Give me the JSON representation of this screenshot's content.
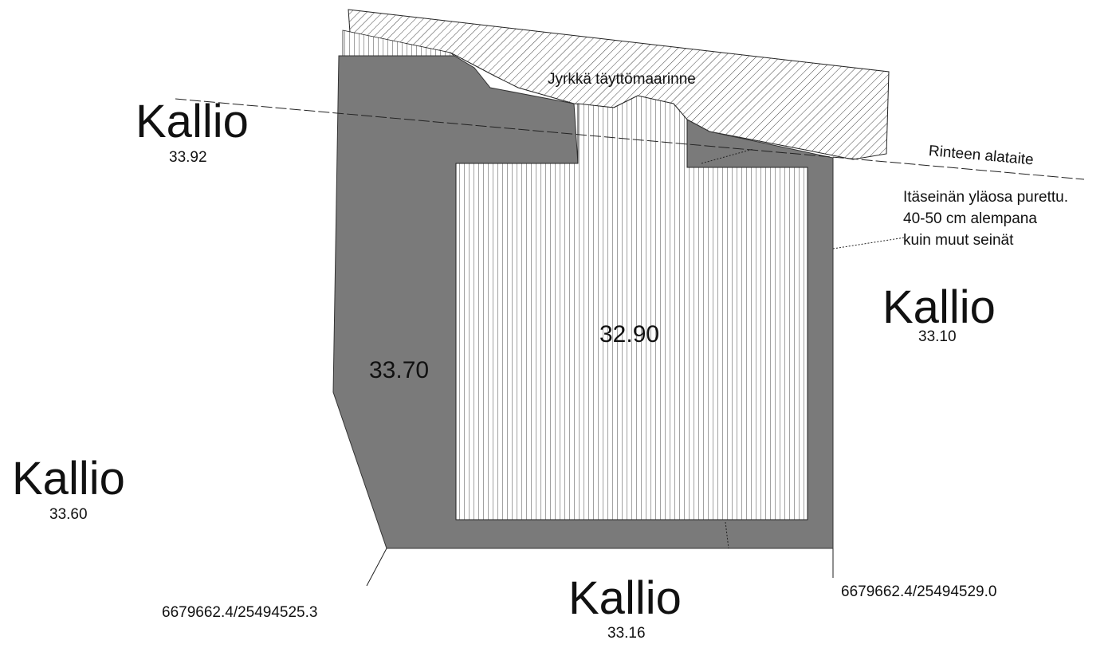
{
  "labels": {
    "kallio_nw": "Kallio",
    "elev_nw": "33.92",
    "kallio_e": "Kallio",
    "elev_e": "33.10",
    "kallio_sw": "Kallio",
    "elev_sw": "33.60",
    "kallio_s": "Kallio",
    "elev_s": "33.16",
    "floor_elev": "32.90",
    "wall_elev": "33.70",
    "slope": "Jyrkkä täyttömaarinne",
    "slope_toe": "Rinteen alataite",
    "note_line1": "Itäseinän yläosa purettu.",
    "note_line2": "40-50 cm alempana",
    "note_line3": "kuin muut seinät",
    "coord_sw": "6679662.4/25494525.3",
    "coord_se": "6679662.4/25494529.0"
  },
  "colors": {
    "wall": "#7a7a7a",
    "hatch": "#333333",
    "background": "#ffffff"
  }
}
